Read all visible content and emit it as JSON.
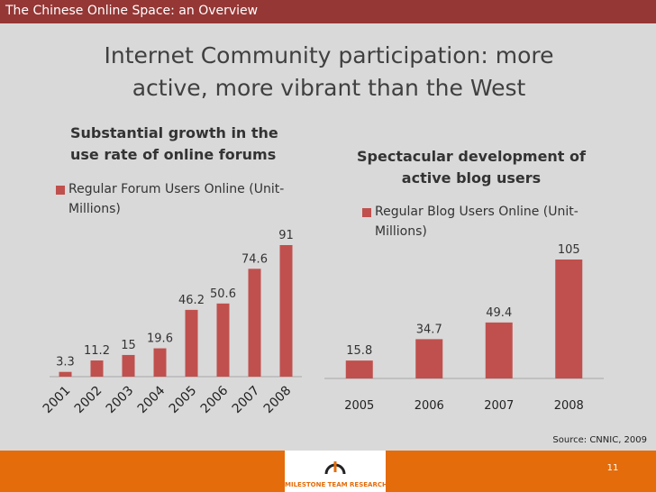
{
  "header": {
    "section": "The Chinese Online Space: an Overview",
    "title": "Internet Community participation: more active, more vibrant than the West"
  },
  "chart_data": [
    {
      "type": "bar",
      "title": "Substantial growth in the use rate of online forums",
      "categories": [
        "2001",
        "2002",
        "2003",
        "2004",
        "2005",
        "2006",
        "2007",
        "2008"
      ],
      "series": [
        {
          "name": "Regular Forum Users Online (Unit-Millions)",
          "color": "#c0504d",
          "values": [
            3.3,
            11.2,
            15,
            19.6,
            46.2,
            50.6,
            74.6,
            91
          ]
        }
      ]
    },
    {
      "type": "bar",
      "title": "Spectacular development of active blog users",
      "categories": [
        "2005",
        "2006",
        "2007",
        "2008"
      ],
      "series": [
        {
          "name": "Regular Blog Users Online (Unit-Millions)",
          "color": "#c0504d",
          "values": [
            15.8,
            34.7,
            49.4,
            105
          ]
        }
      ]
    }
  ],
  "footer": {
    "source": "Source: CNNIC, 2009",
    "logo": "MILESTONE TEAM RESEARCH",
    "page": "11"
  }
}
